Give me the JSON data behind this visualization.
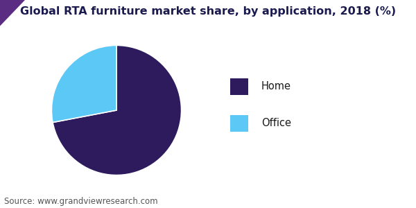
{
  "title": "Global RTA furniture market share, by application, 2018 (%)",
  "slices": [
    72,
    28
  ],
  "labels": [
    "Home",
    "Office"
  ],
  "colors": [
    "#2d1b5e",
    "#5bc8f5"
  ],
  "startangle": 90,
  "legend_labels": [
    "Home",
    "Office"
  ],
  "source_text": "Source: www.grandviewresearch.com",
  "background_color": "#ffffff",
  "title_fontsize": 11.5,
  "legend_fontsize": 10.5,
  "source_fontsize": 8.5,
  "header_bar_color": "#5b2d82",
  "header_line_color": "#7b3fa8",
  "title_color": "#1a1a4e"
}
